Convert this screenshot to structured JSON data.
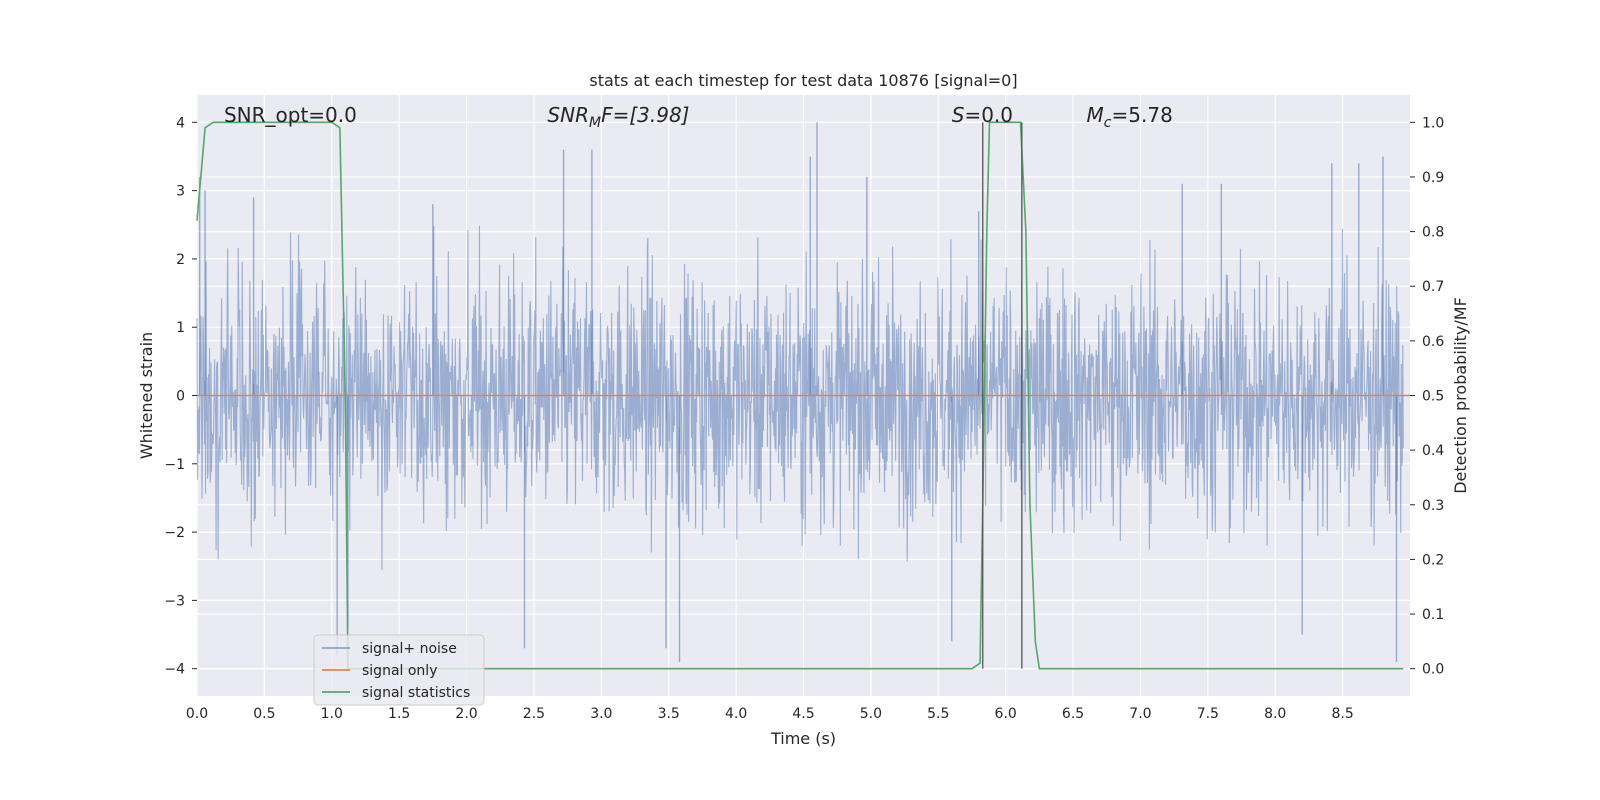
{
  "chart_data": {
    "type": "line",
    "title": "stats at each timestep for test data 10876 [signal=0]",
    "xlabel": "Time (s)",
    "ylabel": "Whitened strain",
    "y2label": "Detection probability/MF",
    "xlim": [
      0.0,
      9.0
    ],
    "ylim": [
      -4.4,
      4.4
    ],
    "y2lim": [
      -0.05,
      1.05
    ],
    "xticks": [
      "0.0",
      "0.5",
      "1.0",
      "1.5",
      "2.0",
      "2.5",
      "3.0",
      "3.5",
      "4.0",
      "4.5",
      "5.0",
      "5.5",
      "6.0",
      "6.5",
      "7.0",
      "7.5",
      "8.0",
      "8.5"
    ],
    "yticks": [
      "−4",
      "−3",
      "−2",
      "−1",
      "0",
      "1",
      "2",
      "3",
      "4"
    ],
    "y2ticks": [
      "0.0",
      "0.1",
      "0.2",
      "0.3",
      "0.4",
      "0.5",
      "0.6",
      "0.7",
      "0.8",
      "0.9",
      "1.0"
    ],
    "grid": true,
    "legend_position": "lower-left",
    "annotations": [
      {
        "label": "SNR_opt=0.0",
        "x": 0.2
      },
      {
        "label": "SNR",
        "sub": "M",
        "rest": "F=[3.98]",
        "x": 2.6
      },
      {
        "label": "S",
        "rest": "=0.0",
        "x": 5.6
      },
      {
        "label": "M",
        "sub": "c",
        "rest": "=5.78",
        "x": 6.6
      }
    ],
    "series": [
      {
        "name": "signal+ noise",
        "color": "#4c72b0",
        "axis": "left",
        "kind": "noise",
        "typical_amplitude": 1.5,
        "peaks": [
          {
            "x": 0.02,
            "y": 3.2
          },
          {
            "x": 0.06,
            "y": 3.0
          },
          {
            "x": 0.42,
            "y": 2.9
          },
          {
            "x": 1.04,
            "y": -3.8
          },
          {
            "x": 1.12,
            "y": -3.4
          },
          {
            "x": 1.75,
            "y": 2.8
          },
          {
            "x": 2.43,
            "y": -3.7
          },
          {
            "x": 2.72,
            "y": 3.6
          },
          {
            "x": 2.93,
            "y": 3.6
          },
          {
            "x": 3.48,
            "y": -3.7
          },
          {
            "x": 3.58,
            "y": -3.9
          },
          {
            "x": 4.6,
            "y": 4.0
          },
          {
            "x": 4.55,
            "y": 3.5
          },
          {
            "x": 4.97,
            "y": 3.2
          },
          {
            "x": 5.6,
            "y": -3.6
          },
          {
            "x": 5.8,
            "y": 2.7
          },
          {
            "x": 7.31,
            "y": 3.1
          },
          {
            "x": 7.6,
            "y": 3.1
          },
          {
            "x": 8.2,
            "y": -3.5
          },
          {
            "x": 8.42,
            "y": 3.4
          },
          {
            "x": 8.62,
            "y": 3.4
          },
          {
            "x": 8.8,
            "y": 3.5
          },
          {
            "x": 8.9,
            "y": -3.9
          }
        ]
      },
      {
        "name": "signal only",
        "color": "#dd8452",
        "axis": "left",
        "x": [
          0.0,
          9.0
        ],
        "y": [
          0.0,
          0.0
        ]
      },
      {
        "name": "signal statistics",
        "color": "#55a868",
        "axis": "right",
        "x": [
          0.0,
          0.06,
          0.12,
          0.25,
          1.0,
          1.06,
          1.1,
          1.12,
          5.75,
          5.81,
          5.83,
          5.86,
          5.88,
          6.11,
          6.15,
          6.18,
          6.22,
          6.25,
          8.95
        ],
        "y": [
          0.82,
          0.99,
          1.0,
          1.0,
          1.0,
          0.99,
          0.5,
          0.0,
          0.0,
          0.01,
          0.3,
          0.8,
          1.0,
          1.0,
          0.8,
          0.3,
          0.05,
          0.0,
          0.0
        ]
      }
    ],
    "vertical_lines": [
      {
        "x": 5.83,
        "y_top": 1.0,
        "y_bottom": 0.0,
        "axis": "right",
        "color": "#555555"
      },
      {
        "x": 6.12,
        "y_top": 1.0,
        "y_bottom": 0.0,
        "axis": "right",
        "color": "#555555"
      }
    ]
  }
}
